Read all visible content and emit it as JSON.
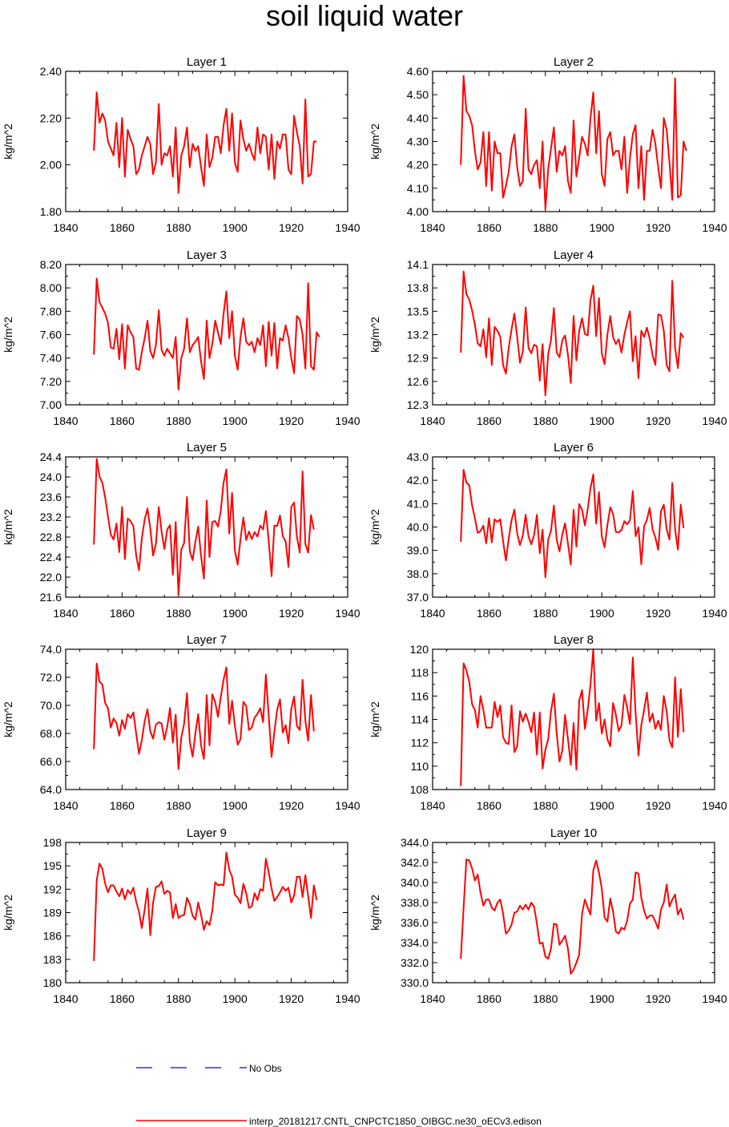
{
  "title": "soil liquid water",
  "legend": {
    "obs_label": "No Obs",
    "model_label": "interp_20181217.CNTL_CNPCTC1850_OIBGC.ne30_oECv3.edison",
    "obs_color": "#0000ff",
    "model_color": "#ff0000"
  },
  "chart_data": [
    {
      "type": "line",
      "title": "Layer 1",
      "ylabel": "kg/m^2",
      "xlim": [
        1840,
        1940
      ],
      "ylim": [
        1.8,
        2.4
      ],
      "xticks": [
        "1840",
        "1860",
        "1880",
        "1900",
        "1920",
        "1940"
      ],
      "yticks": [
        "1.80",
        "2.00",
        "2.20",
        "2.40"
      ],
      "x_start": 1850,
      "values": [
        2.06,
        2.31,
        2.18,
        2.22,
        2.19,
        2.1,
        2.07,
        2.04,
        2.18,
        1.99,
        2.2,
        1.95,
        2.15,
        2.11,
        2.08,
        1.96,
        1.98,
        2.04,
        2.08,
        2.12,
        2.09,
        1.96,
        2.01,
        2.26,
        2.0,
        2.05,
        2.04,
        2.08,
        1.95,
        2.16,
        1.88,
        2.04,
        2.08,
        2.16,
        1.99,
        2.09,
        2.06,
        2.08,
        1.99,
        1.91,
        2.13,
        1.99,
        2.03,
        2.12,
        2.12,
        2.05,
        2.17,
        2.24,
        2.06,
        2.22,
        2.01,
        1.97,
        2.19,
        2.11,
        2.06,
        2.09,
        2.05,
        2.02,
        2.16,
        2.05,
        2.13,
        2.12,
        1.98,
        2.13,
        1.94,
        2.1,
        2.07,
        2.13,
        2.13,
        1.98,
        1.96,
        2.21,
        2.14,
        2.08,
        1.92,
        2.28,
        1.95,
        1.96,
        2.1,
        2.1
      ]
    },
    {
      "type": "line",
      "title": "Layer 2",
      "ylabel": "kg/m^2",
      "xlim": [
        1840,
        1940
      ],
      "ylim": [
        4.0,
        4.6
      ],
      "xticks": [
        "1840",
        "1860",
        "1880",
        "1900",
        "1920",
        "1940"
      ],
      "yticks": [
        "4.00",
        "4.10",
        "4.20",
        "4.30",
        "4.40",
        "4.50",
        "4.60"
      ],
      "x_start": 1850,
      "values": [
        4.2,
        4.58,
        4.43,
        4.41,
        4.37,
        4.26,
        4.18,
        4.21,
        4.34,
        4.11,
        4.34,
        4.09,
        4.3,
        4.25,
        4.25,
        4.06,
        4.11,
        4.17,
        4.28,
        4.33,
        4.19,
        4.11,
        4.13,
        4.44,
        4.18,
        4.16,
        4.2,
        4.22,
        4.1,
        4.3,
        4.01,
        4.18,
        4.27,
        4.36,
        4.17,
        4.26,
        4.24,
        4.28,
        4.13,
        4.08,
        4.39,
        4.15,
        4.23,
        4.32,
        4.29,
        4.24,
        4.4,
        4.51,
        4.25,
        4.43,
        4.16,
        4.11,
        4.31,
        4.34,
        4.24,
        4.26,
        4.26,
        4.18,
        4.32,
        4.08,
        4.23,
        4.33,
        4.37,
        4.1,
        4.28,
        4.05,
        4.26,
        4.26,
        4.35,
        4.29,
        4.19,
        4.1,
        4.4,
        4.35,
        4.21,
        4.05,
        4.57,
        4.06,
        4.07,
        4.3,
        4.26
      ]
    },
    {
      "type": "line",
      "title": "Layer 3",
      "ylabel": "kg/m^2",
      "xlim": [
        1840,
        1940
      ],
      "ylim": [
        7.0,
        8.2
      ],
      "xticks": [
        "1840",
        "1860",
        "1880",
        "1900",
        "1920",
        "1940"
      ],
      "yticks": [
        "7.00",
        "7.20",
        "7.40",
        "7.60",
        "7.80",
        "8.00",
        "8.20"
      ],
      "x_start": 1850,
      "values": [
        7.43,
        8.08,
        7.88,
        7.83,
        7.78,
        7.7,
        7.49,
        7.48,
        7.65,
        7.39,
        7.69,
        7.31,
        7.68,
        7.62,
        7.58,
        7.31,
        7.3,
        7.45,
        7.57,
        7.72,
        7.46,
        7.4,
        7.51,
        7.81,
        7.47,
        7.42,
        7.48,
        7.44,
        7.4,
        7.58,
        7.13,
        7.4,
        7.48,
        7.74,
        7.45,
        7.51,
        7.54,
        7.58,
        7.37,
        7.22,
        7.72,
        7.4,
        7.52,
        7.72,
        7.62,
        7.52,
        7.78,
        7.97,
        7.57,
        7.8,
        7.42,
        7.3,
        7.58,
        7.74,
        7.54,
        7.51,
        7.54,
        7.45,
        7.57,
        7.51,
        7.68,
        7.33,
        7.71,
        7.42,
        7.7,
        7.31,
        7.57,
        7.55,
        7.68,
        7.57,
        7.4,
        7.27,
        7.76,
        7.73,
        7.6,
        7.31,
        8.04,
        7.33,
        7.3,
        7.62,
        7.58
      ]
    },
    {
      "type": "line",
      "title": "Layer 4",
      "ylabel": "kg/m^2",
      "xlim": [
        1840,
        1940
      ],
      "ylim": [
        12.3,
        14.1
      ],
      "xticks": [
        "1840",
        "1860",
        "1880",
        "1900",
        "1920",
        "1940"
      ],
      "yticks": [
        "12.3",
        "12.6",
        "12.9",
        "13.2",
        "13.5",
        "13.8",
        "14.1"
      ],
      "x_start": 1850,
      "values": [
        12.97,
        14.01,
        13.72,
        13.65,
        13.51,
        13.33,
        13.09,
        13.05,
        13.27,
        12.91,
        13.41,
        12.81,
        13.3,
        13.25,
        13.17,
        12.81,
        12.7,
        13.03,
        13.27,
        13.47,
        13.17,
        12.84,
        12.98,
        13.55,
        13.03,
        12.96,
        13.07,
        13.05,
        12.61,
        13.08,
        12.42,
        12.95,
        13.13,
        13.54,
        12.97,
        12.91,
        13.13,
        13.19,
        12.94,
        12.58,
        13.44,
        12.87,
        13.25,
        13.41,
        13.21,
        13.19,
        13.64,
        13.83,
        13.18,
        13.67,
        12.96,
        12.82,
        13.2,
        13.44,
        13.17,
        13.08,
        13.14,
        12.97,
        13.2,
        13.36,
        13.5,
        12.86,
        13.18,
        12.64,
        13.25,
        13.17,
        13.29,
        13.15,
        12.94,
        12.81,
        13.46,
        13.45,
        13.25,
        12.81,
        12.73,
        13.89,
        13.03,
        12.77,
        13.22,
        13.16
      ]
    },
    {
      "type": "line",
      "title": "Layer 5",
      "ylabel": "kg/m^2",
      "xlim": [
        1840,
        1940
      ],
      "ylim": [
        21.6,
        24.4
      ],
      "xticks": [
        "1840",
        "1860",
        "1880",
        "1900",
        "1920",
        "1940"
      ],
      "yticks": [
        "21.6",
        "22.0",
        "22.4",
        "22.8",
        "23.2",
        "23.6",
        "24.0",
        "24.4"
      ],
      "x_start": 1850,
      "values": [
        22.65,
        24.36,
        24.01,
        23.88,
        23.59,
        23.21,
        22.85,
        22.75,
        23.07,
        22.5,
        23.4,
        22.36,
        23.17,
        23.12,
        23.02,
        22.43,
        22.14,
        22.77,
        23.15,
        23.37,
        22.97,
        22.43,
        22.66,
        23.4,
        22.91,
        22.56,
        22.95,
        23.04,
        22.05,
        23.1,
        21.65,
        22.55,
        22.68,
        23.6,
        22.52,
        22.34,
        22.71,
        23.01,
        22.42,
        21.97,
        23.53,
        22.4,
        23.1,
        23.12,
        23.01,
        23.33,
        23.89,
        24.15,
        22.87,
        23.68,
        22.53,
        22.25,
        22.76,
        23.19,
        22.74,
        22.91,
        22.76,
        22.9,
        22.81,
        23.03,
        22.95,
        23.32,
        22.73,
        22.02,
        23.03,
        23.02,
        23.23,
        22.82,
        22.71,
        22.2,
        23.4,
        23.49,
        22.81,
        22.49,
        24.11,
        22.66,
        22.49,
        23.24,
        22.95
      ]
    },
    {
      "type": "line",
      "title": "Layer 6",
      "ylabel": "kg/m^2",
      "xlim": [
        1840,
        1940
      ],
      "ylim": [
        37.0,
        43.0
      ],
      "xticks": [
        "1840",
        "1860",
        "1880",
        "1900",
        "1920",
        "1940"
      ],
      "yticks": [
        "37.0",
        "38.0",
        "39.0",
        "40.0",
        "41.0",
        "42.0",
        "43.0"
      ],
      "x_start": 1850,
      "values": [
        39.37,
        42.45,
        41.9,
        41.78,
        40.93,
        40.38,
        39.75,
        39.83,
        40.06,
        39.3,
        40.38,
        39.35,
        40.33,
        40.22,
        40.33,
        39.4,
        38.57,
        39.49,
        40.3,
        40.74,
        39.73,
        39.23,
        39.64,
        40.52,
        39.61,
        39.26,
        39.66,
        40.52,
        38.88,
        39.89,
        37.85,
        39.46,
        39.84,
        40.92,
        39.46,
        38.96,
        39.67,
        40.16,
        39.28,
        38.39,
        40.74,
        39.16,
        40.98,
        40.74,
        40.07,
        40.76,
        41.66,
        42.25,
        40.14,
        41.49,
        39.6,
        39.13,
        40.08,
        40.85,
        40.56,
        39.79,
        39.77,
        39.87,
        40.25,
        40.12,
        40.3,
        41.54,
        39.61,
        39.99,
        38.41,
        40.03,
        40.31,
        40.82,
        39.9,
        39.55,
        39.03,
        40.67,
        40.96,
        39.9,
        39.47,
        41.89,
        39.91,
        39.03,
        40.96,
        39.95
      ]
    },
    {
      "type": "line",
      "title": "Layer 7",
      "ylabel": "kg/m^2",
      "xlim": [
        1840,
        1940
      ],
      "ylim": [
        64.0,
        74.0
      ],
      "xticks": [
        "1840",
        "1860",
        "1880",
        "1900",
        "1920",
        "1940"
      ],
      "yticks": [
        "64.0",
        "66.0",
        "68.0",
        "70.0",
        "72.0",
        "74.0"
      ],
      "x_start": 1850,
      "values": [
        66.88,
        72.98,
        71.7,
        71.48,
        70.16,
        69.81,
        68.42,
        69.07,
        68.73,
        67.84,
        68.96,
        68.33,
        69.37,
        69.1,
        69.5,
        67.99,
        66.55,
        67.52,
        68.88,
        69.72,
        68.15,
        67.63,
        68.62,
        68.8,
        68.72,
        67.55,
        68.47,
        69.81,
        67.35,
        69.34,
        65.46,
        67.72,
        68.68,
        70.87,
        67.42,
        66.34,
        68.02,
        69.38,
        67.13,
        66.19,
        70.74,
        67.15,
        70.8,
        70.25,
        69.18,
        70.6,
        71.84,
        72.71,
        68.69,
        70.32,
        68.54,
        67.2,
        67.59,
        70.25,
        69.98,
        68.24,
        68.43,
        69.12,
        69.4,
        69.8,
        68.81,
        72.2,
        69.28,
        66.32,
        68.12,
        69.7,
        70.43,
        68.07,
        68.59,
        67.31,
        69.75,
        70.63,
        68.55,
        68.24,
        71.83,
        68.9,
        67.48,
        70.74,
        68.16
      ]
    },
    {
      "type": "line",
      "title": "Layer 8",
      "ylabel": "kg/m^2",
      "xlim": [
        1840,
        1940
      ],
      "ylim": [
        108,
        120
      ],
      "xticks": [
        "1840",
        "1860",
        "1880",
        "1900",
        "1920",
        "1940"
      ],
      "yticks": [
        "108",
        "110",
        "112",
        "114",
        "116",
        "118",
        "120"
      ],
      "x_start": 1850,
      "values": [
        108.3,
        118.8,
        118.2,
        117.2,
        115.3,
        114.8,
        113.3,
        116.0,
        114.8,
        113.3,
        113.3,
        113.3,
        115.5,
        114.2,
        115.2,
        112.5,
        112.0,
        111.9,
        115.2,
        111.2,
        111.7,
        114.7,
        113.8,
        114.5,
        113.8,
        112.9,
        114.6,
        111.0,
        114.6,
        109.8,
        111.4,
        112.3,
        114.7,
        116.2,
        112.8,
        110.4,
        111.3,
        114.4,
        112.3,
        110.1,
        113.7,
        109.7,
        115.6,
        116.5,
        113.2,
        114.8,
        117.0,
        120.0,
        113.9,
        115.4,
        112.8,
        114.0,
        112.3,
        111.7,
        115.4,
        114.4,
        113.0,
        113.5,
        116.1,
        115.0,
        113.6,
        119.3,
        114.6,
        110.9,
        113.5,
        114.8,
        116.3,
        113.8,
        114.5,
        113.2,
        113.9,
        113.1,
        116.0,
        114.7,
        112.2,
        111.6,
        117.6,
        112.5,
        116.6,
        112.9
      ]
    },
    {
      "type": "line",
      "title": "Layer 9",
      "ylabel": "kg/m^2",
      "xlim": [
        1840,
        1940
      ],
      "ylim": [
        180,
        198
      ],
      "xticks": [
        "1840",
        "1860",
        "1880",
        "1900",
        "1920",
        "1940"
      ],
      "yticks": [
        "180",
        "183",
        "186",
        "189",
        "192",
        "195",
        "198"
      ],
      "x_start": 1850,
      "values": [
        182.8,
        193.1,
        195.3,
        194.6,
        192.7,
        191.6,
        192.5,
        192.5,
        191.7,
        191.1,
        192.1,
        190.7,
        191.9,
        191.4,
        192.2,
        190.4,
        189.1,
        187.0,
        189.4,
        192.1,
        186.1,
        190.3,
        192.3,
        192.4,
        193.0,
        191.4,
        191.8,
        191.6,
        188.3,
        190.1,
        188.3,
        188.6,
        188.7,
        190.9,
        190.1,
        188.6,
        188.1,
        190.3,
        188.7,
        186.8,
        187.9,
        187.4,
        189.2,
        192.9,
        192.5,
        192.6,
        192.5,
        196.7,
        194.5,
        193.6,
        191.3,
        190.9,
        190.2,
        192.7,
        191.5,
        189.6,
        189.8,
        191.5,
        190.6,
        192.0,
        191.8,
        195.9,
        194.2,
        192.1,
        190.5,
        191.0,
        191.6,
        192.3,
        191.8,
        192.2,
        190.3,
        191.2,
        193.6,
        193.6,
        191.0,
        193.8,
        191.1,
        188.3,
        192.5,
        190.6
      ]
    },
    {
      "type": "line",
      "title": "Layer 10",
      "ylabel": "kg/m^2",
      "xlim": [
        1840,
        1940
      ],
      "ylim": [
        330,
        344
      ],
      "xticks": [
        "1840",
        "1860",
        "1880",
        "1900",
        "1920",
        "1940"
      ],
      "yticks": [
        "330.0",
        "332.0",
        "334.0",
        "336.0",
        "338.0",
        "340.0",
        "342.0",
        "344.0"
      ],
      "x_start": 1850,
      "values": [
        332.4,
        337.5,
        342.3,
        342.2,
        341.4,
        340.2,
        340.8,
        339.0,
        337.7,
        338.3,
        338.3,
        337.5,
        337.2,
        338.0,
        338.3,
        336.9,
        334.9,
        335.2,
        335.8,
        337.0,
        337.1,
        337.7,
        337.3,
        337.8,
        337.3,
        338.0,
        337.6,
        335.9,
        333.9,
        334.0,
        332.6,
        332.4,
        333.4,
        335.9,
        335.8,
        333.8,
        334.2,
        334.7,
        333.4,
        330.9,
        331.3,
        332.0,
        332.8,
        336.9,
        338.3,
        337.5,
        336.8,
        341.2,
        342.2,
        341.0,
        339.4,
        336.5,
        336.1,
        338.4,
        337.1,
        335.1,
        334.9,
        335.5,
        335.3,
        336.2,
        337.9,
        338.3,
        341.0,
        340.9,
        338.5,
        337.2,
        336.4,
        336.7,
        336.7,
        336.1,
        335.4,
        337.3,
        338.0,
        339.8,
        337.6,
        338.3,
        338.8,
        336.8,
        337.4,
        336.3
      ]
    }
  ]
}
